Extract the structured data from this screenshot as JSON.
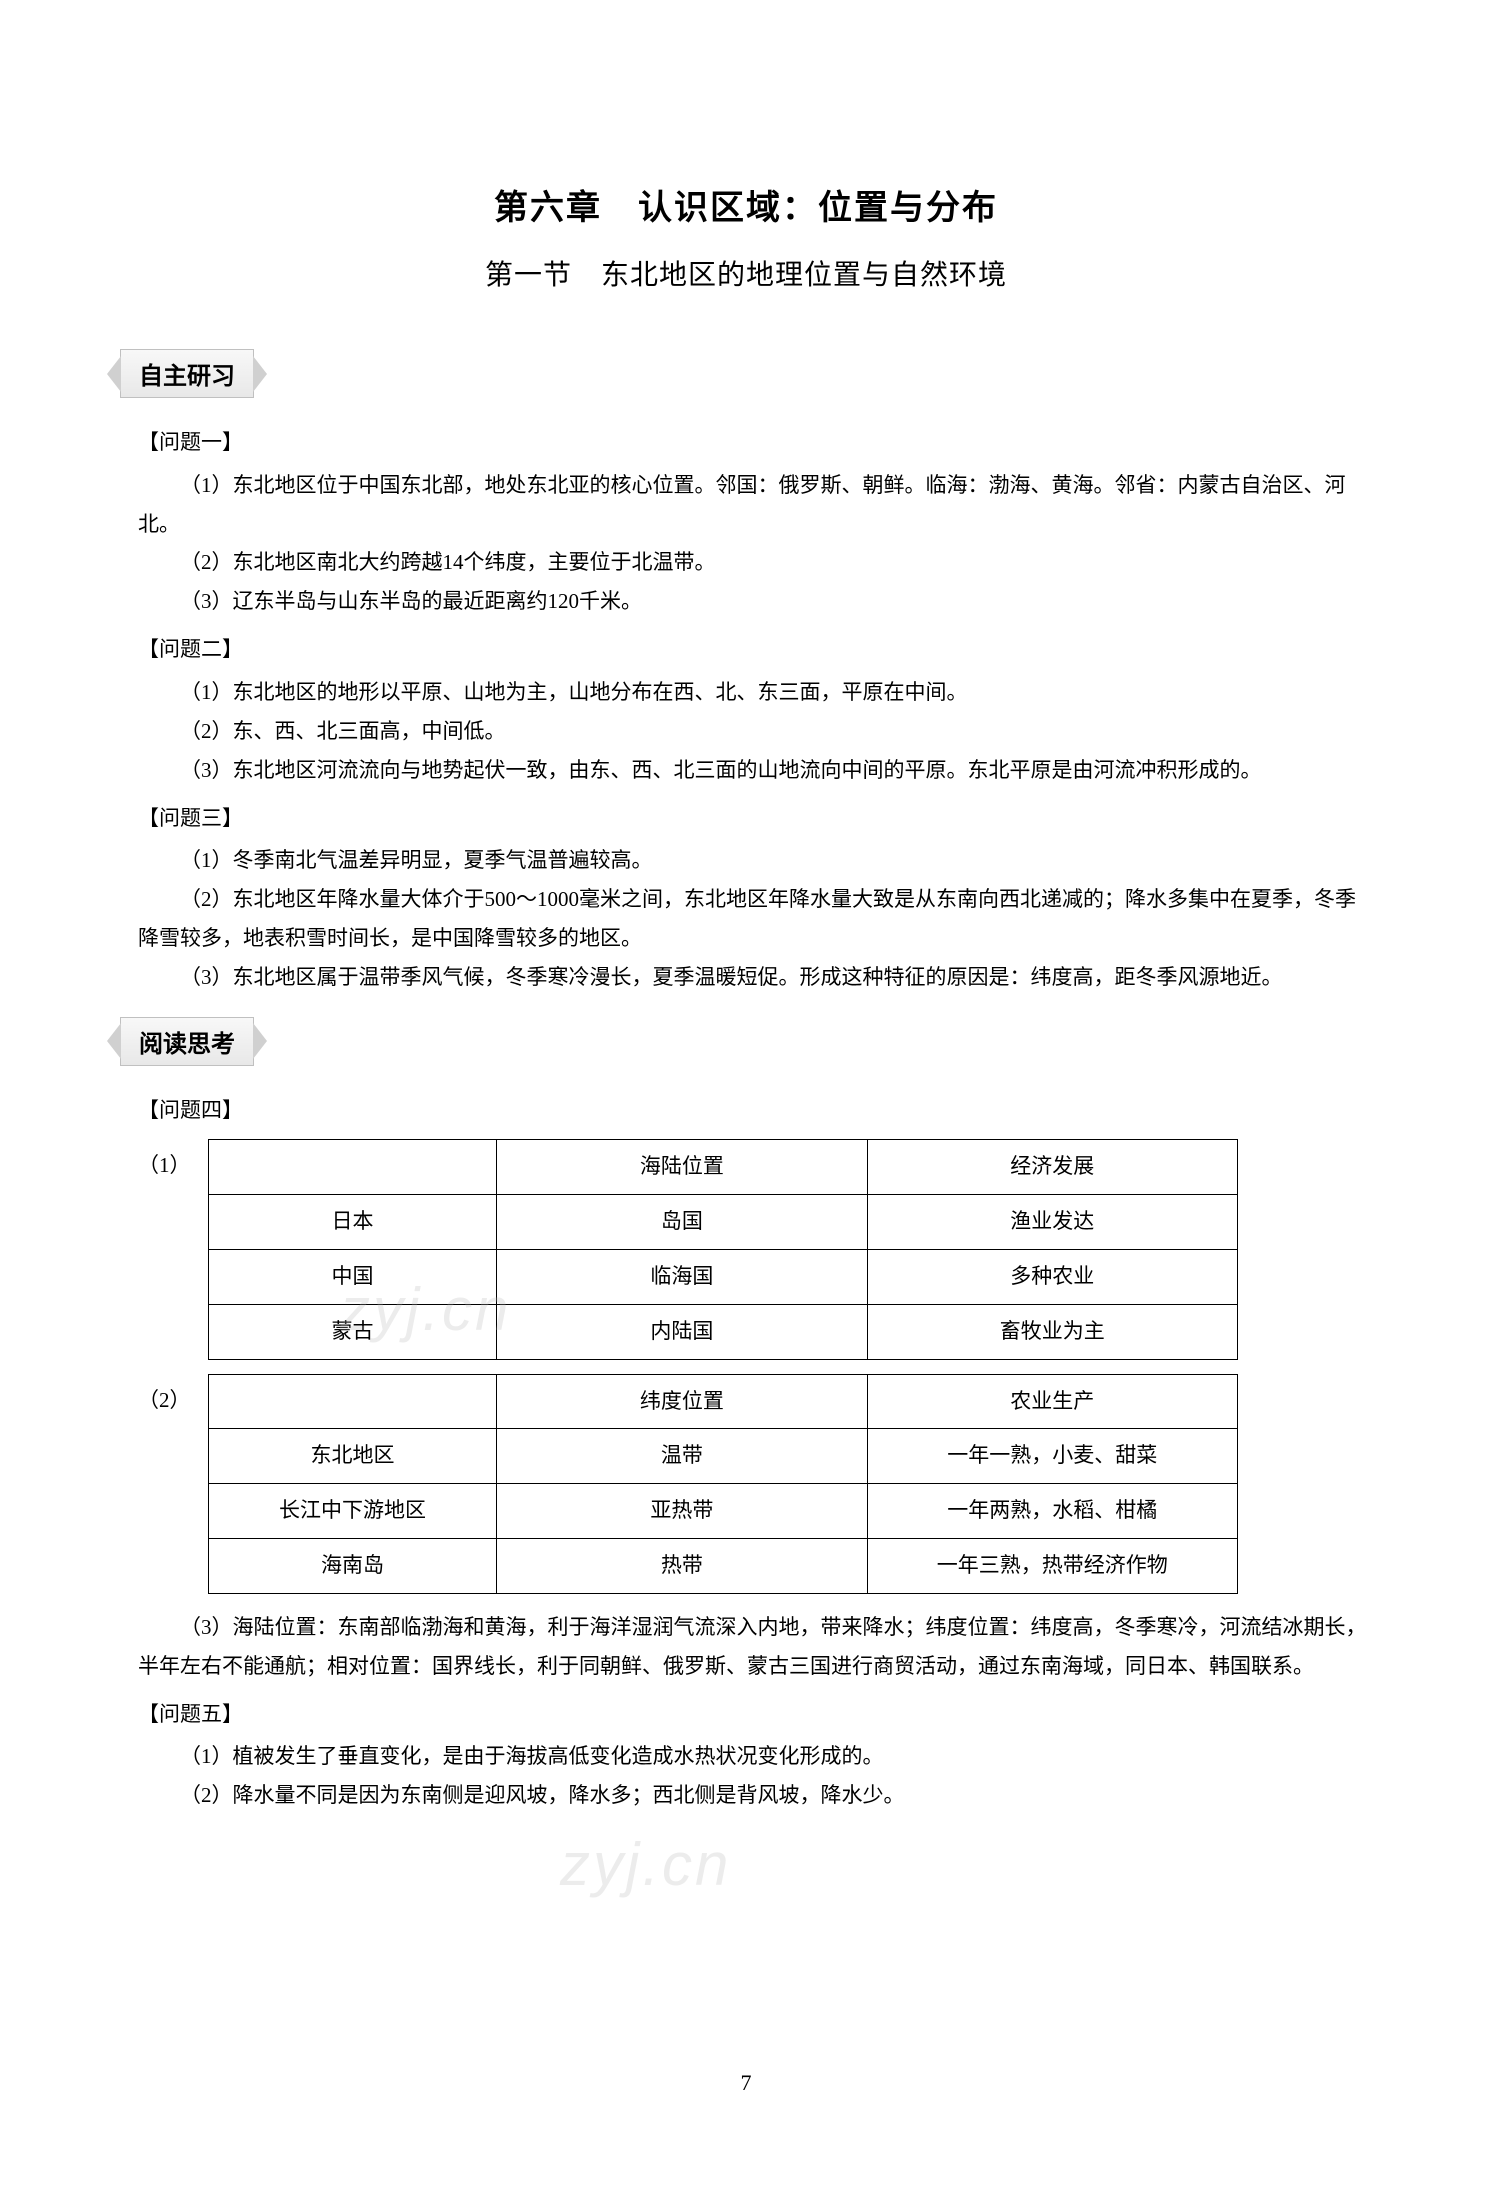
{
  "chapter": {
    "title": "第六章　认识区域：位置与分布",
    "section_title": "第一节　东北地区的地理位置与自然环境"
  },
  "section1": {
    "header": "自主研习",
    "q1": {
      "label": "【问题一】",
      "items": [
        "（1）东北地区位于中国东北部，地处东北亚的核心位置。邻国：俄罗斯、朝鲜。临海：渤海、黄海。邻省：内蒙古自治区、河北。",
        "（2）东北地区南北大约跨越14个纬度，主要位于北温带。",
        "（3）辽东半岛与山东半岛的最近距离约120千米。"
      ]
    },
    "q2": {
      "label": "【问题二】",
      "items": [
        "（1）东北地区的地形以平原、山地为主，山地分布在西、北、东三面，平原在中间。",
        "（2）东、西、北三面高，中间低。",
        "（3）东北地区河流流向与地势起伏一致，由东、西、北三面的山地流向中间的平原。东北平原是由河流冲积形成的。"
      ]
    },
    "q3": {
      "label": "【问题三】",
      "items": [
        "（1）冬季南北气温差异明显，夏季气温普遍较高。",
        "（2）东北地区年降水量大体介于500～1000毫米之间，东北地区年降水量大致是从东南向西北递减的；降水多集中在夏季，冬季降雪较多，地表积雪时间长，是中国降雪较多的地区。",
        "（3）东北地区属于温带季风气候，冬季寒冷漫长，夏季温暖短促。形成这种特征的原因是：纬度高，距冬季风源地近。"
      ]
    }
  },
  "section2": {
    "header": "阅读思考",
    "q4": {
      "label": "【问题四】",
      "table1": {
        "label": "（1）",
        "columns": [
          "",
          "海陆位置",
          "经济发展"
        ],
        "rows": [
          [
            "日本",
            "岛国",
            "渔业发达"
          ],
          [
            "中国",
            "临海国",
            "多种农业"
          ],
          [
            "蒙古",
            "内陆国",
            "畜牧业为主"
          ]
        ]
      },
      "table2": {
        "label": "（2）",
        "columns": [
          "",
          "纬度位置",
          "农业生产"
        ],
        "rows": [
          [
            "东北地区",
            "温带",
            "一年一熟，小麦、甜菜"
          ],
          [
            "长江中下游地区",
            "亚热带",
            "一年两熟，水稻、柑橘"
          ],
          [
            "海南岛",
            "热带",
            "一年三熟，热带经济作物"
          ]
        ]
      },
      "item3": "（3）海陆位置：东南部临渤海和黄海，利于海洋湿润气流深入内地，带来降水；纬度位置：纬度高，冬季寒冷，河流结冰期长，半年左右不能通航；相对位置：国界线长，利于同朝鲜、俄罗斯、蒙古三国进行商贸活动，通过东南海域，同日本、韩国联系。"
    },
    "q5": {
      "label": "【问题五】",
      "items": [
        "（1）植被发生了垂直变化，是由于海拔高低变化造成水热状况变化形成的。",
        "（2）降水量不同是因为东南侧是迎风坡，降水多；西北侧是背风坡，降水少。"
      ]
    }
  },
  "page_number": "7",
  "watermark": "zyj.cn",
  "styles": {
    "background_color": "#ffffff",
    "text_color": "#000000",
    "border_color": "#000000",
    "badge_bg_start": "#f8f8f8",
    "badge_bg_end": "#e8e8e8",
    "badge_border": "#c0c0c0",
    "watermark_color": "rgba(180,180,180,0.25)",
    "title_fontsize": 34,
    "section_fontsize": 28,
    "body_fontsize": 21,
    "badge_fontsize": 24
  }
}
